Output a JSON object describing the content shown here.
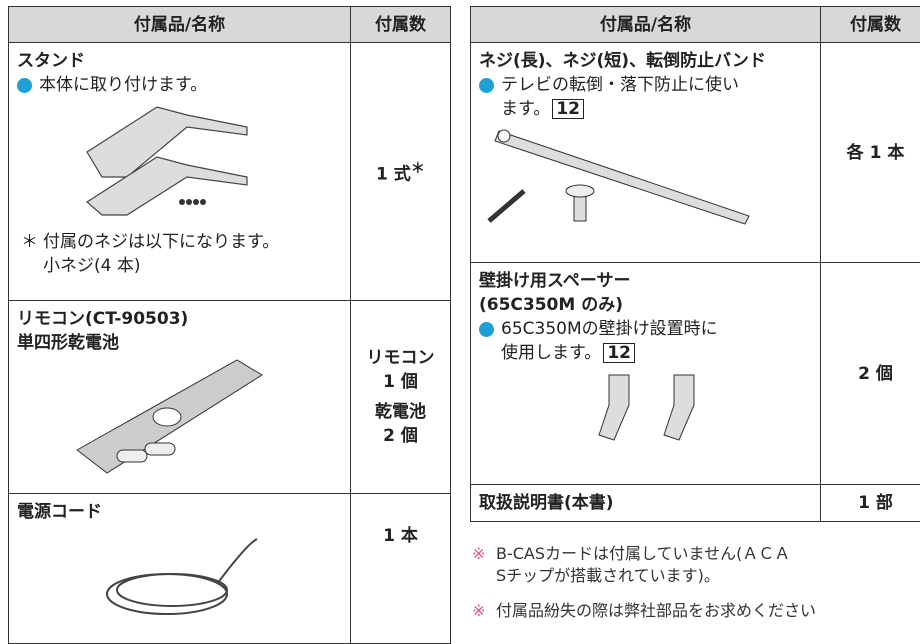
{
  "left_table": {
    "header": [
      "付属品/名称",
      "付属数"
    ],
    "rows": [
      {
        "name": [
          "スタンド"
        ],
        "bullet": [
          "本体に取り付けます。"
        ],
        "note_mark": "＊",
        "note": [
          "付属のネジは以下になります。",
          "小ネジ(4 本)"
        ],
        "count": [
          "1 式"
        ],
        "count_mark": "＊"
      },
      {
        "name": [
          "リモコン(CT-90503)",
          "単四形乾電池"
        ],
        "count": [
          "リモコン",
          "1 個",
          "乾電池",
          "2 個"
        ]
      },
      {
        "name": [
          "電源コード"
        ],
        "count": [
          "1 本"
        ]
      }
    ]
  },
  "right_table": {
    "header": [
      "付属品/名称",
      "付属数"
    ],
    "rows": [
      {
        "name": [
          "ネジ(長)、ネジ(短)、転倒防止バンド"
        ],
        "bullet": [
          "テレビの転倒・落下防止に使い",
          "ます。"
        ],
        "ref": "12",
        "count": [
          "各 1 本"
        ]
      },
      {
        "name": [
          "壁掛け用スペーサー",
          "(65C350M のみ)"
        ],
        "bullet": [
          "65C350Mの壁掛け設置時に",
          "使用します。"
        ],
        "ref": "12",
        "count": [
          "2 個"
        ]
      },
      {
        "name": [
          "取扱説明書(本書)"
        ],
        "count": [
          "1 部"
        ]
      }
    ]
  },
  "notes": [
    {
      "mark": "※",
      "lines": [
        "B-CASカードは付属していません(ＡＣＡ",
        "Sチップが搭載されています)。"
      ]
    },
    {
      "mark": "※",
      "lines": [
        "付属品紛失の際は弊社部品をお求めください"
      ]
    }
  ]
}
